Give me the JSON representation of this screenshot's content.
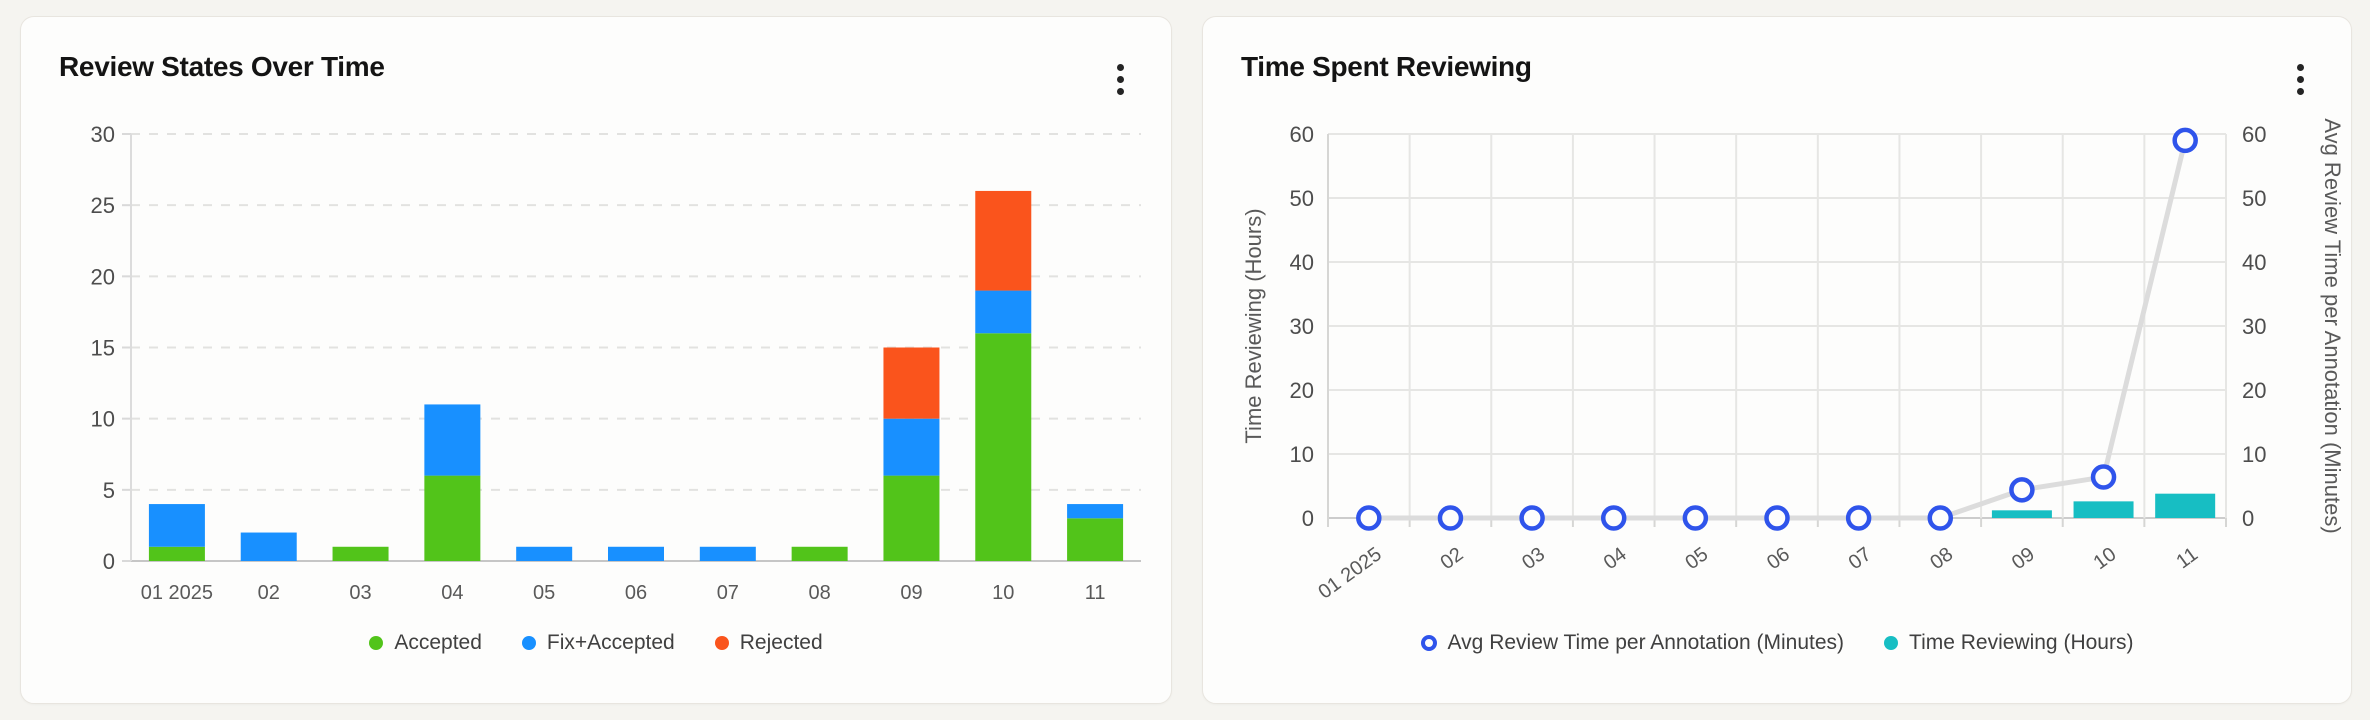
{
  "page": {
    "background_color": "#f5f4f0",
    "card_background": "#fdfdfc",
    "card_border_color": "#e8e5df"
  },
  "cards": {
    "review_states": {
      "title": "Review States Over Time",
      "menu_icon": "kebab-menu"
    },
    "time_spent": {
      "title": "Time Spent Reviewing",
      "menu_icon": "kebab-menu"
    }
  },
  "chart_data": [
    {
      "type": "bar",
      "stacked": true,
      "title": "Review States Over Time",
      "categories": [
        "01 2025",
        "02",
        "03",
        "04",
        "05",
        "06",
        "07",
        "08",
        "09",
        "10",
        "11"
      ],
      "series": [
        {
          "name": "Accepted",
          "color": "#52C41A",
          "values": [
            1,
            0,
            1,
            6,
            0,
            0,
            0,
            1,
            6,
            16,
            3
          ]
        },
        {
          "name": "Fix+Accepted",
          "color": "#1890FF",
          "values": [
            3,
            2,
            0,
            5,
            1,
            1,
            1,
            0,
            4,
            3,
            1
          ]
        },
        {
          "name": "Rejected",
          "color": "#FA541C",
          "values": [
            0,
            0,
            0,
            0,
            0,
            0,
            0,
            0,
            5,
            7,
            0
          ]
        }
      ],
      "xlabel": "",
      "ylabel": "",
      "ylim": [
        0,
        30
      ],
      "yticks": [
        0,
        5,
        10,
        15,
        20,
        25,
        30
      ],
      "grid": "horizontal-dashed",
      "legend_position": "bottom"
    },
    {
      "type": "combo",
      "title": "Time Spent Reviewing",
      "categories": [
        "01 2025",
        "02",
        "03",
        "04",
        "05",
        "06",
        "07",
        "08",
        "09",
        "10",
        "11"
      ],
      "series": [
        {
          "name": "Time Reviewing (Hours)",
          "type": "bar",
          "axis": "left",
          "color": "#17BEC3",
          "values": [
            0,
            0,
            0,
            0,
            0,
            0,
            0,
            0,
            1.2,
            2.6,
            3.8
          ]
        },
        {
          "name": "Avg Review Time per Annotation (Minutes)",
          "type": "line",
          "axis": "right",
          "marker_color": "#2F54EB",
          "line_color": "#DCDCDC",
          "marker": "open-circle",
          "values": [
            0,
            0,
            0,
            0,
            0,
            0,
            0,
            0,
            4.4,
            6.4,
            59
          ]
        }
      ],
      "ylabel_left": "Time Reviewing (Hours)",
      "ylabel_right": "Avg Review Time per Annotation (Minutes)",
      "ylim_left": [
        0,
        60
      ],
      "ylim_right": [
        0,
        60
      ],
      "yticks": [
        0,
        10,
        20,
        30,
        40,
        50,
        60
      ],
      "grid": "both-solid",
      "legend_position": "bottom"
    }
  ]
}
